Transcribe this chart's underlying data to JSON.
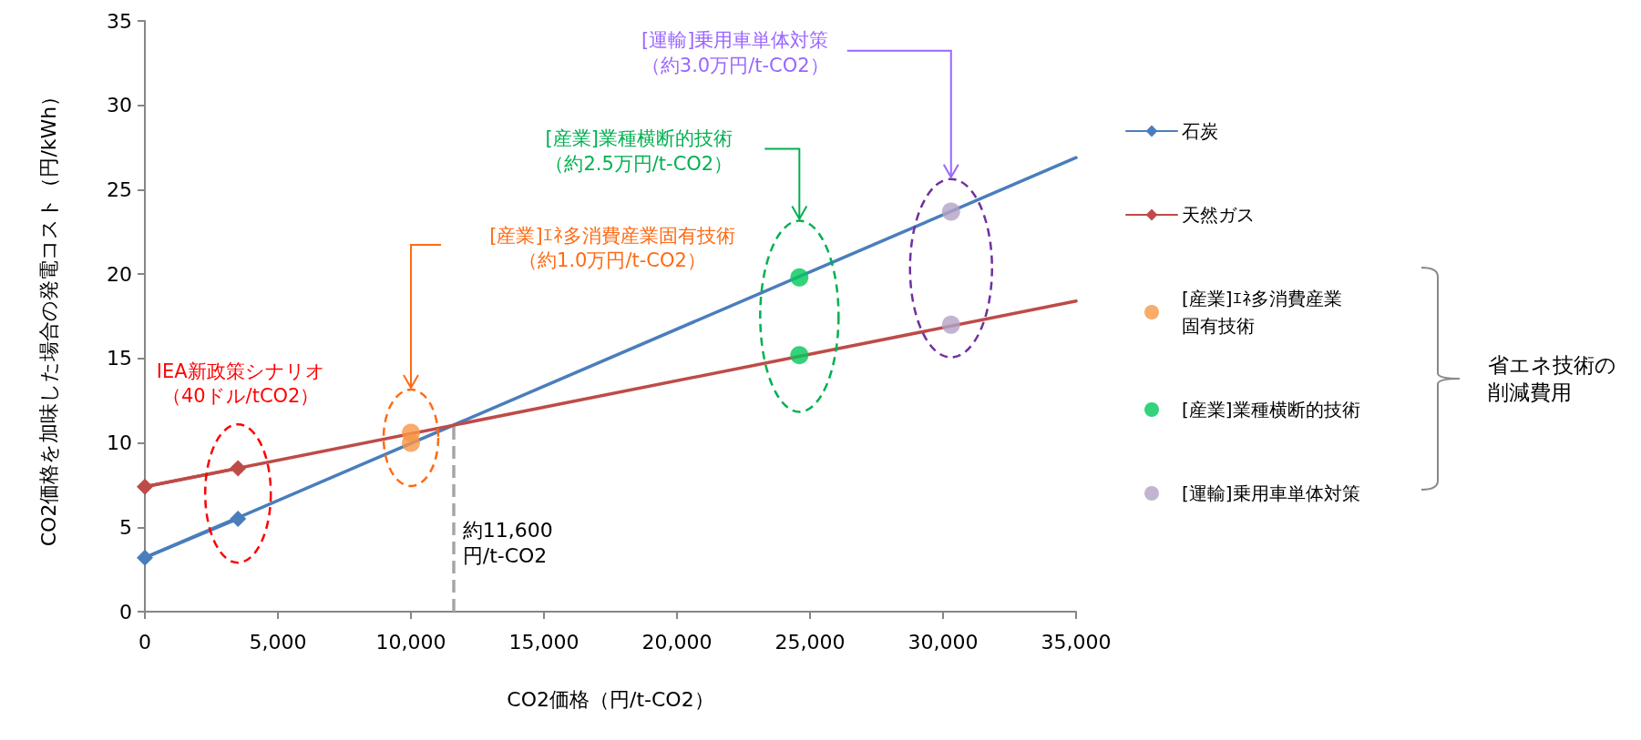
{
  "chart_data": {
    "type": "line",
    "xlabel": "CO2価格（円/t-CO2）",
    "ylabel": "CO2価格を加味した場合の発電コスト（円/kWh）",
    "xlim": [
      0,
      35000
    ],
    "xticks": [
      0,
      {
        "value": 5000,
        "label": "5,000"
      },
      {
        "value": 10000,
        "label": "10,000"
      },
      {
        "value": 15000,
        "label": "15,000"
      },
      {
        "value": 20000,
        "label": "20,000"
      },
      {
        "value": 25000,
        "label": "25,000"
      },
      {
        "value": 30000,
        "label": "30,000"
      },
      {
        "value": 35000,
        "label": "35,000"
      }
    ],
    "ylim": [
      0,
      35
    ],
    "yticks": [
      0,
      5,
      10,
      15,
      20,
      25,
      30,
      35
    ],
    "grid": false,
    "legend": "right",
    "series": [
      {
        "name": "石炭",
        "color": "#4a7ebb",
        "marker": "diamond",
        "x": [
          0,
          3500
        ],
        "values": [
          3.2,
          5.5
        ]
      },
      {
        "color": "#4a7ebb",
        "marker": "none",
        "x": [
          0,
          35000
        ],
        "values": [
          3.2,
          26.9
        ]
      },
      {
        "name": "天然ガス",
        "color": "#be4b48",
        "marker": "diamond",
        "x": [
          0,
          3500
        ],
        "values": [
          7.4,
          8.5
        ]
      },
      {
        "color": "#be4b48",
        "marker": "none",
        "x": [
          0,
          35000
        ],
        "values": [
          7.4,
          18.4
        ]
      },
      {
        "name": "[産業]ｴﾈ多消費産業固有技術",
        "type": "scatter",
        "color": "#f79646",
        "marker": "circle",
        "x": [
          10000,
          10000
        ],
        "values": [
          10.6,
          10.0
        ]
      },
      {
        "name": "[産業]業種横断的技術",
        "type": "scatter",
        "color": "#00c85a",
        "marker": "circle",
        "x": [
          24600,
          24600
        ],
        "values": [
          19.8,
          15.2
        ]
      },
      {
        "name": "[運輸]乗用車単体対策",
        "type": "scatter",
        "color": "#b3a2c7",
        "marker": "circle",
        "x": [
          30300,
          30300
        ],
        "values": [
          23.7,
          17.0
        ]
      }
    ],
    "ref_lines": [
      {
        "axis": "x",
        "value": 11600,
        "label": "約11,600\n円/t-CO2",
        "color": "#a6a6a6",
        "line_style": "dashed"
      }
    ],
    "annotations": [
      "IEA新政策シナリオ（40ドル/tCO2）",
      "[産業]ｴﾈ多消費産業固有技術（約1.0万円/t-CO2）",
      "[産業]業種横断的技術（約2.5万円/t-CO2）",
      "[運輸]乗用車単体対策（約3.0万円/t-CO2）",
      "省エネ技術の削減費用"
    ]
  }
}
